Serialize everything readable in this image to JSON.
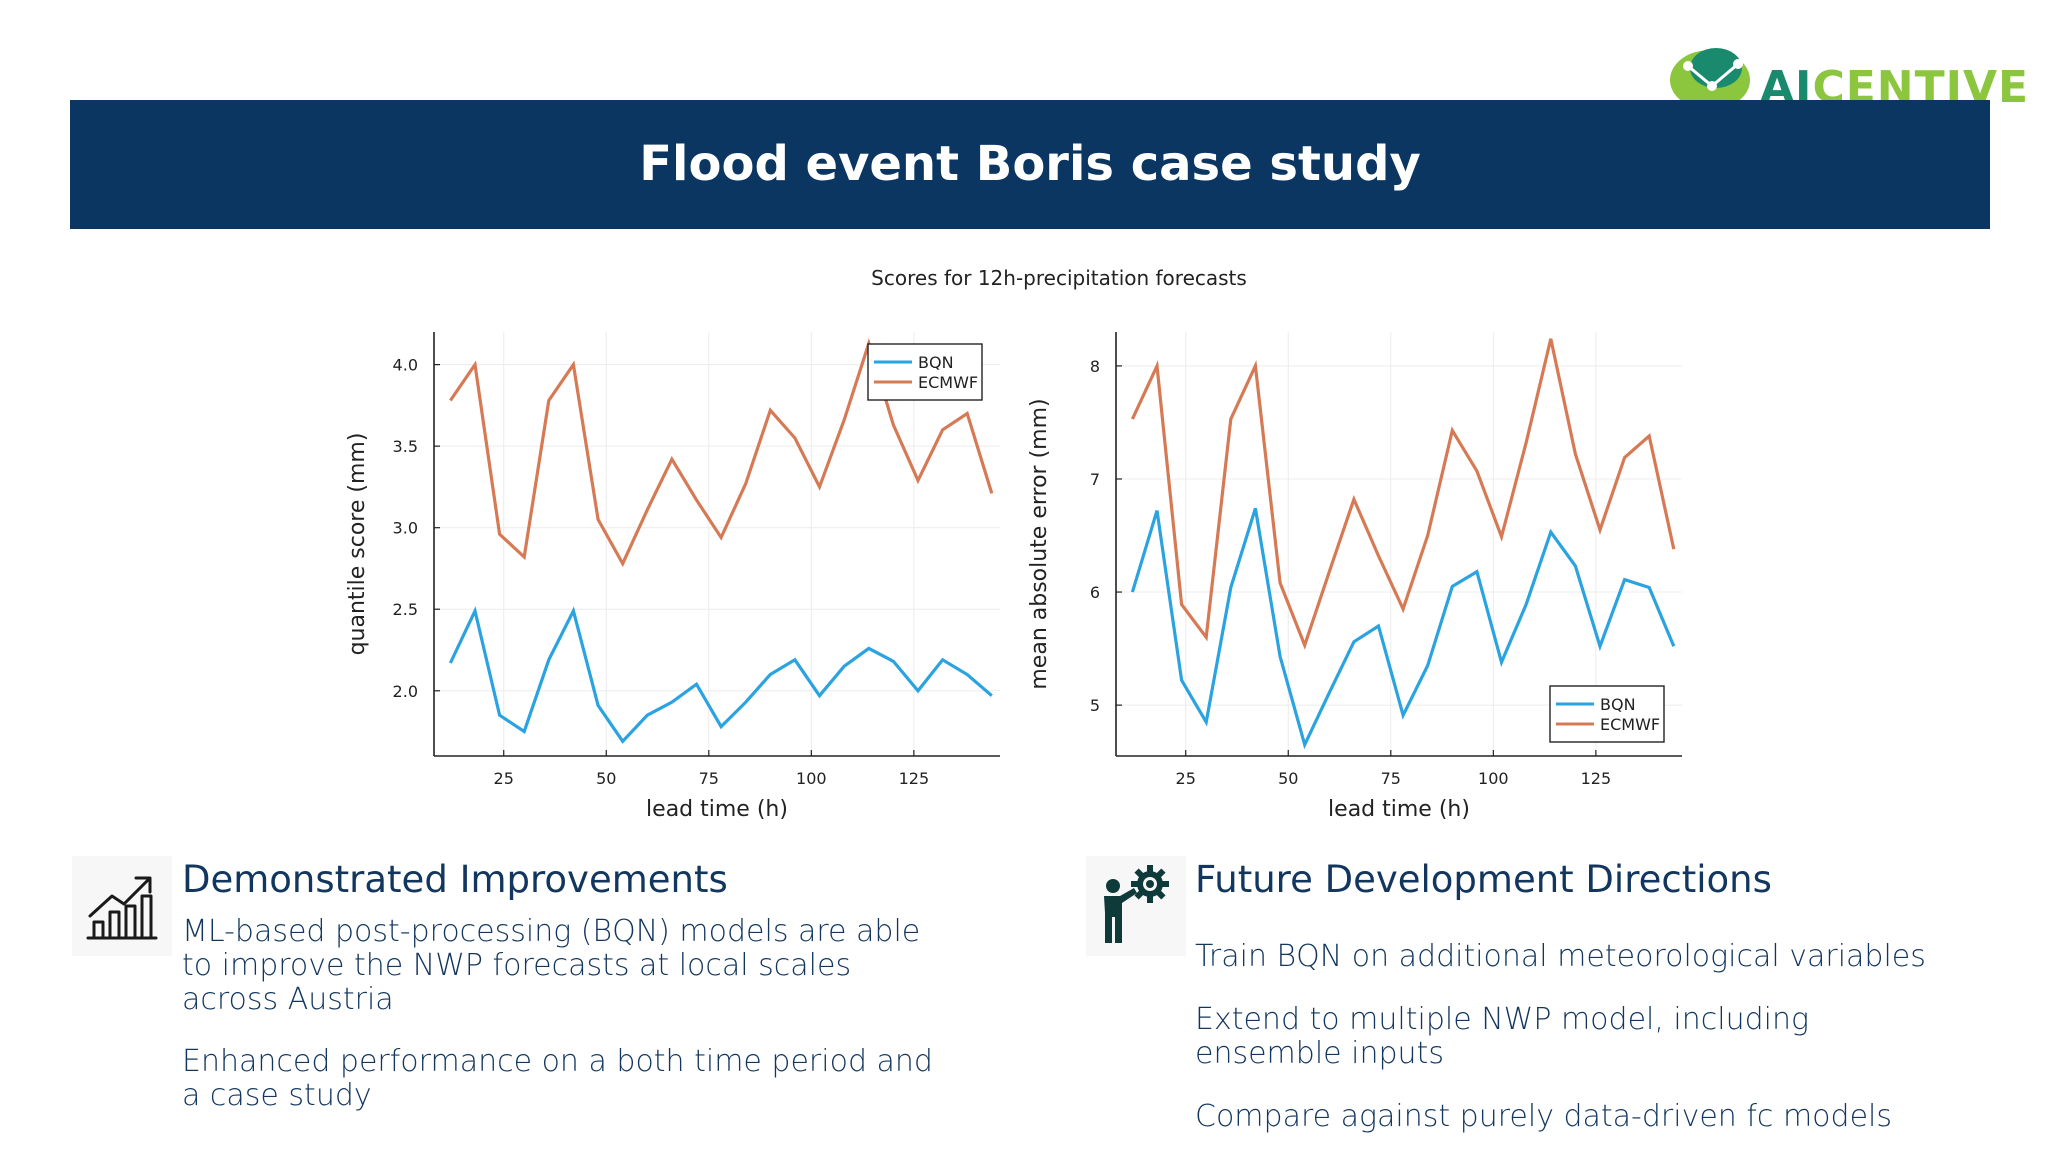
{
  "logo": {
    "prefix": "AI",
    "suffix": "CENTIVE"
  },
  "title": "Flood event Boris case study",
  "figure_title": "Scores for 12h-precipitation forecasts",
  "colors": {
    "banner": "#0a3661",
    "bqn": "#2aa3e0",
    "ecmwf": "#d67a55",
    "text": "#12365e"
  },
  "chart_data": [
    {
      "type": "line",
      "title": "",
      "xlabel": "lead time (h)",
      "ylabel": "quantile score (mm)",
      "xlim": [
        8,
        146
      ],
      "ylim": [
        1.6,
        4.2
      ],
      "xticks": [
        25,
        50,
        75,
        100,
        125
      ],
      "xtick_labels": [
        "25",
        "50",
        "75",
        "100",
        "125"
      ],
      "yticks": [
        2.0,
        2.5,
        3.0,
        3.5,
        4.0
      ],
      "ytick_labels": [
        "2.0",
        "2.5",
        "3.0",
        "3.5",
        "4.0"
      ],
      "legend_position": "top-right",
      "grid": true,
      "x": [
        12,
        18,
        24,
        30,
        36,
        42,
        48,
        54,
        60,
        66,
        72,
        78,
        84,
        90,
        96,
        102,
        108,
        114,
        120,
        126,
        132,
        138,
        144
      ],
      "series": [
        {
          "name": "BQN",
          "color": "#2aa3e0",
          "values": [
            2.17,
            2.49,
            1.85,
            1.75,
            2.19,
            2.49,
            1.91,
            1.69,
            1.85,
            1.93,
            2.04,
            1.78,
            1.93,
            2.1,
            2.19,
            1.97,
            2.15,
            2.26,
            2.18,
            2.0,
            2.19,
            2.1,
            1.97
          ]
        },
        {
          "name": "ECMWF",
          "color": "#d67a55",
          "values": [
            3.78,
            4.0,
            2.96,
            2.82,
            3.78,
            4.0,
            3.05,
            2.78,
            3.11,
            3.42,
            3.17,
            2.94,
            3.27,
            3.72,
            3.55,
            3.25,
            3.66,
            4.13,
            3.63,
            3.29,
            3.6,
            3.7,
            3.21
          ]
        }
      ]
    },
    {
      "type": "line",
      "title": "",
      "xlabel": "lead time (h)",
      "ylabel": "mean absolute error (mm)",
      "xlim": [
        8,
        146
      ],
      "ylim": [
        4.55,
        8.3
      ],
      "xticks": [
        25,
        50,
        75,
        100,
        125
      ],
      "xtick_labels": [
        "25",
        "50",
        "75",
        "100",
        "125"
      ],
      "yticks": [
        5,
        6,
        7,
        8
      ],
      "ytick_labels": [
        "5",
        "6",
        "7",
        "8"
      ],
      "legend_position": "bottom-right",
      "grid": true,
      "x": [
        12,
        18,
        24,
        30,
        36,
        42,
        48,
        54,
        60,
        66,
        72,
        78,
        84,
        90,
        96,
        102,
        108,
        114,
        120,
        126,
        132,
        138,
        144
      ],
      "series": [
        {
          "name": "BQN",
          "color": "#2aa3e0",
          "values": [
            6.0,
            6.72,
            5.22,
            4.85,
            6.04,
            6.74,
            5.43,
            4.65,
            5.11,
            5.56,
            5.7,
            4.91,
            5.35,
            6.05,
            6.18,
            5.38,
            5.89,
            6.53,
            6.23,
            5.52,
            6.11,
            6.04,
            5.52
          ]
        },
        {
          "name": "ECMWF",
          "color": "#d67a55",
          "values": [
            7.53,
            8.0,
            5.89,
            5.6,
            7.53,
            8.0,
            6.08,
            5.53,
            6.18,
            6.82,
            6.32,
            5.85,
            6.5,
            7.43,
            7.07,
            6.49,
            7.32,
            8.24,
            7.22,
            6.55,
            7.19,
            7.38,
            6.38
          ]
        }
      ]
    }
  ],
  "left_section": {
    "icon": "growth-chart-icon",
    "heading": "Demonstrated Improvements",
    "paragraphs": [
      "ML-based post-processing (BQN) models are able to improve the NWP forecasts at local scales across Austria",
      "Enhanced performance on a both time period and a case study"
    ]
  },
  "right_section": {
    "icon": "presenter-gear-icon",
    "heading": "Future Development Directions",
    "paragraphs": [
      "Train BQN on additional meteorological variables",
      "Extend to multiple NWP model, including ensemble inputs",
      "Compare against purely data-driven fc models"
    ]
  }
}
